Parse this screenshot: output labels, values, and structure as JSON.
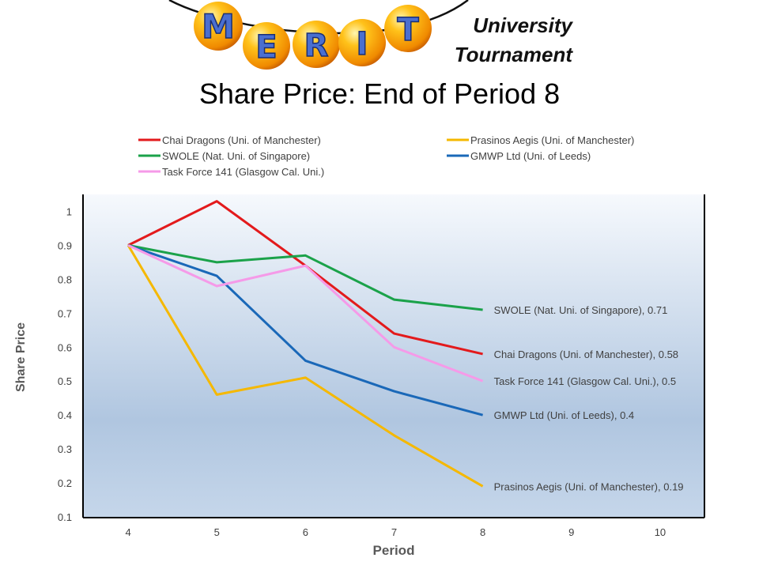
{
  "header": {
    "logo_letters": [
      "M",
      "E",
      "R",
      "I",
      "T"
    ],
    "subtitle_line1": "University",
    "subtitle_line2": "Tournament"
  },
  "title": "Share Price: End of Period 8",
  "chart_data": {
    "type": "line",
    "xlabel": "Period",
    "ylabel": "Share Price",
    "x_ticks": [
      4,
      5,
      6,
      7,
      8,
      9,
      10
    ],
    "y_ticks": [
      0.1,
      0.2,
      0.3,
      0.4,
      0.5,
      0.6,
      0.7,
      0.8,
      0.9,
      1
    ],
    "xlim": [
      3.5,
      10.5
    ],
    "ylim": [
      0.1,
      1.05
    ],
    "grid": false,
    "legend_position": "top",
    "series": [
      {
        "name": "Chai Dragons (Uni. of Manchester)",
        "color": "#e31a1c",
        "x": [
          4,
          5,
          6,
          7,
          8
        ],
        "y": [
          0.9,
          1.03,
          0.84,
          0.64,
          0.58
        ],
        "end_label": "Chai Dragons (Uni. of Manchester), 0.58"
      },
      {
        "name": "Prasinos Aegis (Uni. of Manchester)",
        "color": "#f5b800",
        "x": [
          4,
          5,
          6,
          7,
          8
        ],
        "y": [
          0.9,
          0.46,
          0.51,
          0.34,
          0.19
        ],
        "end_label": "Prasinos Aegis (Uni. of Manchester), 0.19"
      },
      {
        "name": "SWOLE (Nat. Uni. of Singapore)",
        "color": "#1ba24a",
        "x": [
          4,
          5,
          6,
          7,
          8
        ],
        "y": [
          0.9,
          0.85,
          0.87,
          0.74,
          0.71
        ],
        "end_label": "SWOLE (Nat. Uni. of Singapore), 0.71"
      },
      {
        "name": "GMWP Ltd (Uni. of Leeds)",
        "color": "#1a68b8",
        "x": [
          4,
          5,
          6,
          7,
          8
        ],
        "y": [
          0.9,
          0.81,
          0.56,
          0.47,
          0.4
        ],
        "end_label": "GMWP Ltd (Uni. of Leeds), 0.4"
      },
      {
        "name": "Task Force 141 (Glasgow Cal. Uni.)",
        "color": "#f59ae8",
        "x": [
          4,
          5,
          6,
          7,
          8
        ],
        "y": [
          0.9,
          0.78,
          0.84,
          0.6,
          0.5
        ],
        "end_label": "Task Force 141 (Glasgow Cal. Uni.), 0.5"
      }
    ]
  }
}
